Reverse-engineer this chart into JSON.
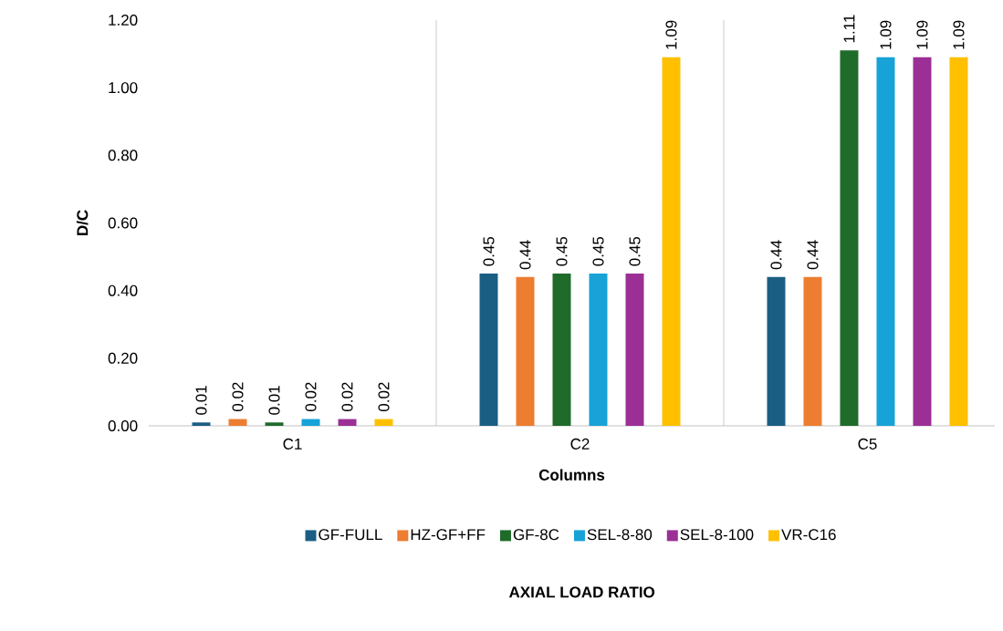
{
  "chart_data": {
    "type": "bar",
    "xlabel": "Columns",
    "ylabel": "D/C",
    "categories": [
      "C1",
      "C2",
      "C5"
    ],
    "series": [
      {
        "name": "GF-FULL",
        "color": "#1b5e83",
        "values": [
          0.01,
          0.45,
          0.44
        ]
      },
      {
        "name": "HZ-GF+FF",
        "color": "#ed7d31",
        "values": [
          0.02,
          0.44,
          0.44
        ]
      },
      {
        "name": "GF-8C",
        "color": "#1e6b2a",
        "values": [
          0.01,
          0.45,
          1.11
        ]
      },
      {
        "name": "SEL-8-80",
        "color": "#17a2d8",
        "values": [
          0.02,
          0.45,
          1.09
        ]
      },
      {
        "name": "SEL-8-100",
        "color": "#9b2f96",
        "values": [
          0.02,
          0.45,
          1.09
        ]
      },
      {
        "name": "VR-C16",
        "color": "#ffc000",
        "values": [
          0.02,
          1.09,
          1.09
        ]
      }
    ],
    "ylim": [
      0,
      1.2
    ],
    "yticks": [
      {
        "value": 0,
        "label": "0.00"
      },
      {
        "value": 0.2,
        "label": "0.20"
      },
      {
        "value": 0.4,
        "label": "0.40"
      },
      {
        "value": 0.6,
        "label": "0.60"
      },
      {
        "value": 0.8,
        "label": "0.80"
      },
      {
        "value": 1.0,
        "label": "1.00"
      },
      {
        "value": 1.2,
        "label": "1.20"
      }
    ],
    "data_labels": true,
    "grid": "x",
    "legend": "bottom",
    "annotations": [
      "AXIAL LOAD RATIO"
    ]
  }
}
